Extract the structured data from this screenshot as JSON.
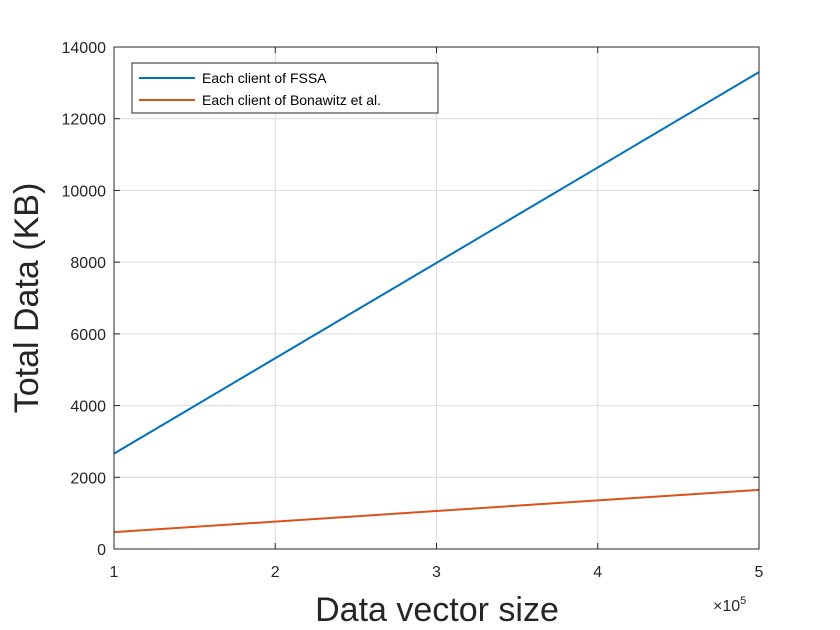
{
  "chart_data": {
    "type": "line",
    "xlabel": "Data vector size",
    "ylabel": "Total Data (KB)",
    "x_multiplier": {
      "base": "×10",
      "exponent": "5"
    },
    "xlim": [
      1,
      5
    ],
    "ylim": [
      0,
      14000
    ],
    "xticks": [
      1,
      2,
      3,
      4,
      5
    ],
    "yticks": [
      0,
      2000,
      4000,
      6000,
      8000,
      10000,
      12000,
      14000
    ],
    "grid": true,
    "legend_position": "top-left",
    "series": [
      {
        "name": "Each client of FSSA",
        "color": "#0072BD",
        "x": [
          1,
          5
        ],
        "y": [
          2660,
          13300
        ]
      },
      {
        "name": "Each client of Bonawitz et al.",
        "color": "#D95319",
        "x": [
          1,
          5
        ],
        "y": [
          470,
          1650
        ]
      }
    ]
  }
}
